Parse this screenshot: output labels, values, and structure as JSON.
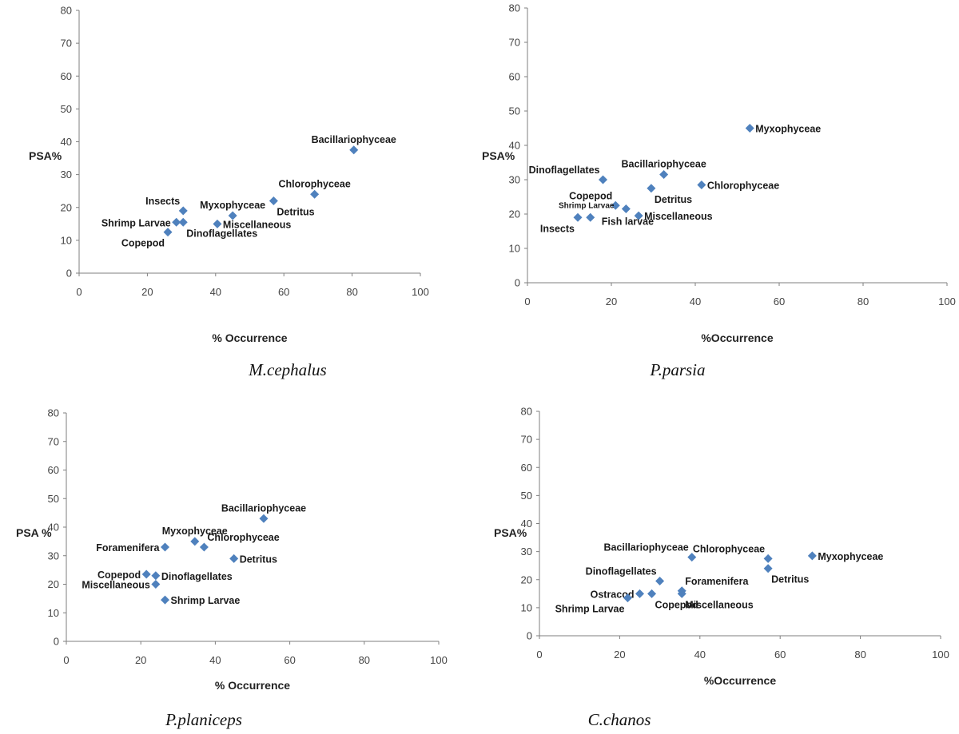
{
  "chart_data": [
    {
      "type": "scatter",
      "caption": "M.cephalus",
      "xlabel": "% Occurrence",
      "ylabel": "PSA%",
      "xlim": [
        0,
        100
      ],
      "ylim": [
        0,
        80
      ],
      "xticks": [
        "0",
        "20",
        "40",
        "60",
        "80",
        "100"
      ],
      "yticks": [
        "0",
        "10",
        "20",
        "30",
        "40",
        "50",
        "60",
        "70",
        "80"
      ],
      "points": [
        {
          "label": "Bacillariophyceae",
          "x": 80.5,
          "y": 37.5,
          "pos": "above"
        },
        {
          "label": "Chlorophyceae",
          "x": 69,
          "y": 24,
          "pos": "above"
        },
        {
          "label": "Detritus",
          "x": 57,
          "y": 22,
          "pos": "below-right"
        },
        {
          "label": "Myxophyceae",
          "x": 45,
          "y": 17.5,
          "pos": "above"
        },
        {
          "label": "Miscellaneous",
          "x": 40.5,
          "y": 15,
          "pos": "right"
        },
        {
          "label": "Insects",
          "x": 30.5,
          "y": 19,
          "pos": "above-left"
        },
        {
          "label": "Shrimp Larvae",
          "x": 28.5,
          "y": 15.5,
          "pos": "left"
        },
        {
          "label": "Dinoflagellates",
          "x": 30.5,
          "y": 15.5,
          "pos": "below-right"
        },
        {
          "label": "Copepod",
          "x": 26,
          "y": 12.5,
          "pos": "below-left"
        }
      ]
    },
    {
      "type": "scatter",
      "caption": "P.parsia",
      "xlabel": "%Occurrence",
      "ylabel": "PSA%",
      "xlim": [
        0,
        100
      ],
      "ylim": [
        0,
        80
      ],
      "xticks": [
        "0",
        "20",
        "40",
        "60",
        "80",
        "100"
      ],
      "yticks": [
        "0",
        "10",
        "20",
        "30",
        "40",
        "50",
        "60",
        "70",
        "80"
      ],
      "points": [
        {
          "label": "Myxophyceae",
          "x": 53,
          "y": 45,
          "pos": "right"
        },
        {
          "label": "Bacillariophyceae",
          "x": 32.5,
          "y": 31.5,
          "pos": "above"
        },
        {
          "label": "Chlorophyceae",
          "x": 41.5,
          "y": 28.5,
          "pos": "right"
        },
        {
          "label": "Dinoflagellates",
          "x": 18,
          "y": 30,
          "pos": "above-left"
        },
        {
          "label": "Detritus",
          "x": 29.5,
          "y": 27.5,
          "pos": "below-right"
        },
        {
          "label": "Copepod",
          "x": 21,
          "y": 22.5,
          "pos": "above-left"
        },
        {
          "label": "Miscellaneous",
          "x": 26.5,
          "y": 19.5,
          "pos": "right"
        },
        {
          "label": "Fish larvae",
          "x": 23.5,
          "y": 21.5,
          "pos": "below"
        },
        {
          "label": "Shrimp Larvae",
          "x": 15,
          "y": 19,
          "pos": "above-small"
        },
        {
          "label": "Insects",
          "x": 12,
          "y": 19,
          "pos": "below-left"
        }
      ]
    },
    {
      "type": "scatter",
      "caption": "P.planiceps",
      "xlabel": "% Occurrence",
      "ylabel": "PSA %",
      "xlim": [
        0,
        100
      ],
      "ylim": [
        0,
        80
      ],
      "xticks": [
        "0",
        "20",
        "40",
        "60",
        "80",
        "100"
      ],
      "yticks": [
        "0",
        "10",
        "20",
        "30",
        "40",
        "50",
        "60",
        "70",
        "80"
      ],
      "points": [
        {
          "label": "Bacillariophyceae",
          "x": 53,
          "y": 43,
          "pos": "above"
        },
        {
          "label": "Myxophyceae",
          "x": 34.5,
          "y": 35,
          "pos": "above"
        },
        {
          "label": "Chlorophyceae",
          "x": 37,
          "y": 33,
          "pos": "above-right"
        },
        {
          "label": "Foramenifera",
          "x": 26.5,
          "y": 33,
          "pos": "left"
        },
        {
          "label": "Detritus",
          "x": 45,
          "y": 29,
          "pos": "right"
        },
        {
          "label": "Copepod",
          "x": 21.5,
          "y": 23.5,
          "pos": "left"
        },
        {
          "label": "Dinoflagellates",
          "x": 24,
          "y": 23,
          "pos": "right"
        },
        {
          "label": "Miscellaneous",
          "x": 24,
          "y": 20,
          "pos": "left"
        },
        {
          "label": "Shrimp Larvae",
          "x": 26.5,
          "y": 14.5,
          "pos": "right"
        }
      ]
    },
    {
      "type": "scatter",
      "caption": "C.chanos",
      "xlabel": "%Occurrence",
      "ylabel": "PSA%",
      "xlim": [
        0,
        100
      ],
      "ylim": [
        0,
        80
      ],
      "xticks": [
        "0",
        "20",
        "40",
        "60",
        "80",
        "100"
      ],
      "yticks": [
        "0",
        "10",
        "20",
        "30",
        "40",
        "50",
        "60",
        "70",
        "80"
      ],
      "points": [
        {
          "label": "Myxophyceae",
          "x": 68,
          "y": 28.5,
          "pos": "right"
        },
        {
          "label": "Chlorophyceae",
          "x": 57,
          "y": 27.5,
          "pos": "above-left"
        },
        {
          "label": "Detritus",
          "x": 57,
          "y": 24,
          "pos": "below-right"
        },
        {
          "label": "Bacillariophyceae",
          "x": 38,
          "y": 28,
          "pos": "above-left"
        },
        {
          "label": "Dinoflagellates",
          "x": 30,
          "y": 19.5,
          "pos": "above-left"
        },
        {
          "label": "Foramenifera",
          "x": 35.5,
          "y": 16,
          "pos": "above-right"
        },
        {
          "label": "Miscellaneous",
          "x": 35.5,
          "y": 15,
          "pos": "below-right"
        },
        {
          "label": "Ostracod",
          "x": 25,
          "y": 15,
          "pos": "left"
        },
        {
          "label": "Copepod",
          "x": 28,
          "y": 15,
          "pos": "below-right"
        },
        {
          "label": "Shrimp Larvae",
          "x": 22,
          "y": 13.5,
          "pos": "below-left"
        }
      ]
    }
  ]
}
